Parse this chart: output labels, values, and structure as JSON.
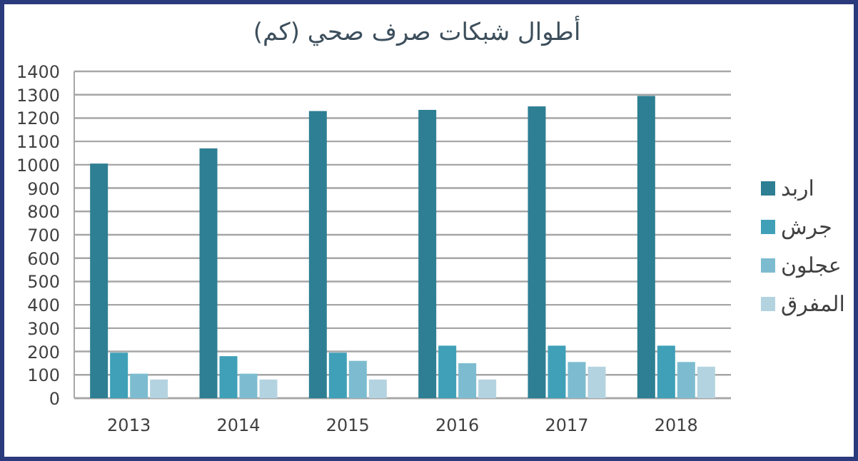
{
  "chart_data": {
    "type": "bar",
    "title": "أطوال شبكات صرف صحي (كم)",
    "categories": [
      "2013",
      "2014",
      "2015",
      "2016",
      "2017",
      "2018"
    ],
    "series": [
      {
        "name": "اربد",
        "color": "#2e7f93",
        "values": [
          1005,
          1070,
          1230,
          1235,
          1250,
          1295
        ]
      },
      {
        "name": "جرش",
        "color": "#3fa0b8",
        "values": [
          195,
          180,
          195,
          225,
          225,
          225
        ]
      },
      {
        "name": "عجلون",
        "color": "#7dbcd0",
        "values": [
          105,
          105,
          160,
          150,
          155,
          155
        ]
      },
      {
        "name": "المفرق",
        "color": "#b4d3e0",
        "values": [
          80,
          80,
          80,
          80,
          135,
          135
        ]
      }
    ],
    "ylim": [
      0,
      1400
    ],
    "yticks": [
      0,
      100,
      200,
      300,
      400,
      500,
      600,
      700,
      800,
      900,
      1000,
      1100,
      1200,
      1300,
      1400
    ],
    "grid": "y",
    "legend": "right"
  }
}
